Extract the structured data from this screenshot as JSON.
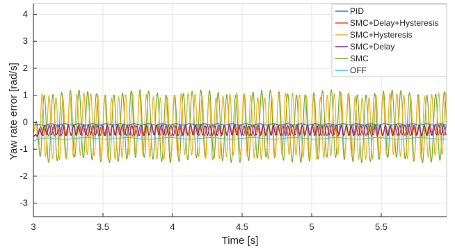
{
  "chart_data": {
    "type": "line",
    "title": "",
    "xlabel": "Time [s]",
    "ylabel": "Yaw rate error [rad/s]",
    "xlim": [
      3,
      5.97
    ],
    "ylim": [
      -3.5,
      4.4
    ],
    "xticks": [
      3,
      3.5,
      4,
      4.5,
      5,
      5.5
    ],
    "xtick_labels": [
      "3",
      "3.5",
      "4",
      "4.5",
      "5",
      "5.5"
    ],
    "yticks": [
      4,
      3,
      2,
      1,
      0,
      -1,
      -2,
      -3
    ],
    "ytick_labels": [
      "4",
      "3",
      "2",
      "1",
      "0",
      "-1",
      "-2",
      "-3"
    ],
    "grid": true,
    "legend_position": "top-right",
    "series": [
      {
        "name": "PID",
        "color": "#2e7fb8",
        "shape": "flat",
        "mean": -0.08,
        "amplitude": 0.02,
        "period": 0.1,
        "x_start": 3.0,
        "y_start": -0.12
      },
      {
        "name": "SMC+Delay+Hysteresis",
        "color": "#d95319",
        "shape": "oscillation",
        "mean": -0.3,
        "amplitude": 0.2,
        "period": 0.04,
        "y_start": -0.55
      },
      {
        "name": "SMC+Hysteresis",
        "color": "#edb120",
        "shape": "oscillation",
        "mean": -0.15,
        "amplitude": 1.15,
        "period": 0.05,
        "y_start": -0.4
      },
      {
        "name": "SMC+Delay",
        "color": "#7e2f8e",
        "shape": "oscillation",
        "mean": -0.3,
        "amplitude": 0.18,
        "period": 0.035,
        "y_start": -0.55
      },
      {
        "name": "SMC",
        "color": "#77ac30",
        "shape": "oscillation",
        "mean": -0.15,
        "amplitude": 1.25,
        "period": 0.0625,
        "y_start": -0.4
      },
      {
        "name": "OFF",
        "color": "#4dbeee",
        "shape": "flat",
        "mean": -0.6,
        "amplitude": 0.03,
        "period": 0.3,
        "y_start": -0.7
      }
    ]
  }
}
